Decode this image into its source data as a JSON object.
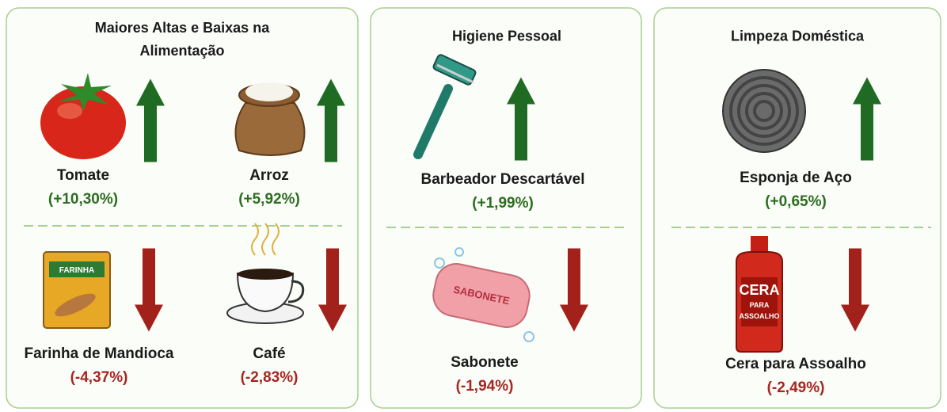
{
  "panels": [
    {
      "title": "Maiores Altas e Baixas na Alimentação",
      "items": [
        {
          "name": "Tomate",
          "change": "(+10,30%)"
        },
        {
          "name": "Arroz",
          "change": "(+5,92%)"
        },
        {
          "name": "Farinha de Mandioca",
          "change": "(-4,37%)",
          "icon_label": "FARINHA"
        },
        {
          "name": "Café",
          "change": "(-2,83%)"
        }
      ]
    },
    {
      "title": "Higiene Pessoal",
      "items": [
        {
          "name": "Barbeador Descartável",
          "change": "(+1,99%)"
        },
        {
          "name": "Sabonete",
          "change": "(-1,94%)",
          "icon_label": "SABONETE"
        }
      ]
    },
    {
      "title": "Limpeza Doméstica",
      "items": [
        {
          "name": "Esponja de Aço",
          "change": "(+0,65%)"
        },
        {
          "name": "Cera para Assoalho",
          "change": "(-2,49%)",
          "icon_label": [
            "CERA",
            "PARA",
            "ASSOALHO"
          ]
        }
      ]
    }
  ]
}
